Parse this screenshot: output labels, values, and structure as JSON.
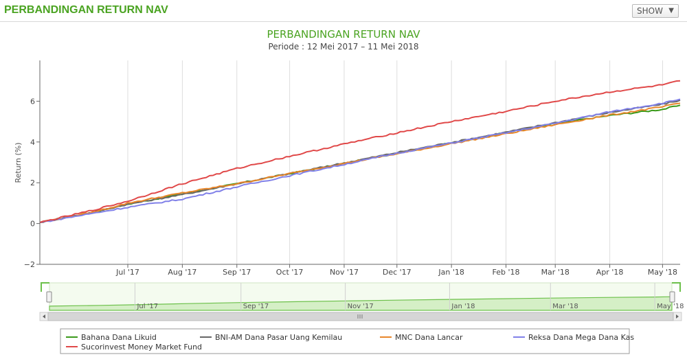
{
  "header": {
    "title": "PERBANDINGAN RETURN NAV",
    "show_label": "SHOW",
    "show_caret": "▼"
  },
  "chart_data": {
    "type": "line",
    "title": "PERBANDINGAN RETURN NAV",
    "subtitle": "Periode : 12 Mei 2017 – 11 Mei 2018",
    "ylabel": "Return (%)",
    "xlabel": "",
    "ylim": [
      -2,
      8
    ],
    "yticks": [
      -2,
      0,
      2,
      4,
      6
    ],
    "x_range_days": [
      0,
      364
    ],
    "xticks": [
      {
        "label": "Jul '17",
        "day": 50
      },
      {
        "label": "Aug '17",
        "day": 81
      },
      {
        "label": "Sep '17",
        "day": 112
      },
      {
        "label": "Oct '17",
        "day": 142
      },
      {
        "label": "Nov '17",
        "day": 173
      },
      {
        "label": "Dec '17",
        "day": 203
      },
      {
        "label": "Jan '18",
        "day": 234
      },
      {
        "label": "Feb '18",
        "day": 265
      },
      {
        "label": "Mar '18",
        "day": 293
      },
      {
        "label": "Apr '18",
        "day": 324
      },
      {
        "label": "May '18",
        "day": 354
      }
    ],
    "navigator_ticks": [
      {
        "label": "Jul '17",
        "day": 50
      },
      {
        "label": "Sep '17",
        "day": 112
      },
      {
        "label": "Nov '17",
        "day": 173
      },
      {
        "label": "Jan '18",
        "day": 234
      },
      {
        "label": "Mar '18",
        "day": 293
      },
      {
        "label": "May '18",
        "day": 354
      }
    ],
    "series": [
      {
        "name": "Bahana Dana Likuid",
        "color": "#3a9a1a",
        "points": [
          [
            0,
            0.05
          ],
          [
            30,
            0.55
          ],
          [
            50,
            0.95
          ],
          [
            81,
            1.45
          ],
          [
            112,
            1.95
          ],
          [
            142,
            2.45
          ],
          [
            173,
            2.95
          ],
          [
            203,
            3.45
          ],
          [
            234,
            3.95
          ],
          [
            265,
            4.45
          ],
          [
            293,
            4.9
          ],
          [
            324,
            5.3
          ],
          [
            354,
            5.6
          ],
          [
            364,
            5.8
          ]
        ]
      },
      {
        "name": "BNI-AM Dana Pasar Uang Kemilau",
        "color": "#666666",
        "points": [
          [
            0,
            0.05
          ],
          [
            30,
            0.55
          ],
          [
            50,
            0.95
          ],
          [
            81,
            1.42
          ],
          [
            112,
            1.95
          ],
          [
            142,
            2.45
          ],
          [
            173,
            2.97
          ],
          [
            203,
            3.48
          ],
          [
            234,
            3.98
          ],
          [
            265,
            4.48
          ],
          [
            293,
            4.95
          ],
          [
            324,
            5.45
          ],
          [
            354,
            5.85
          ],
          [
            364,
            6.05
          ]
        ]
      },
      {
        "name": "MNC Dana Lancar",
        "color": "#e8862a",
        "points": [
          [
            0,
            0.05
          ],
          [
            30,
            0.55
          ],
          [
            50,
            1.0
          ],
          [
            81,
            1.5
          ],
          [
            112,
            1.95
          ],
          [
            142,
            2.45
          ],
          [
            173,
            2.95
          ],
          [
            203,
            3.42
          ],
          [
            234,
            3.92
          ],
          [
            265,
            4.4
          ],
          [
            293,
            4.85
          ],
          [
            324,
            5.32
          ],
          [
            354,
            5.72
          ],
          [
            364,
            5.9
          ]
        ]
      },
      {
        "name": "Reksa Dana Mega Dana Kas",
        "color": "#8080e8",
        "points": [
          [
            0,
            0.05
          ],
          [
            30,
            0.5
          ],
          [
            50,
            0.8
          ],
          [
            81,
            1.2
          ],
          [
            112,
            1.8
          ],
          [
            142,
            2.35
          ],
          [
            173,
            2.9
          ],
          [
            203,
            3.45
          ],
          [
            234,
            3.95
          ],
          [
            265,
            4.45
          ],
          [
            293,
            4.92
          ],
          [
            324,
            5.48
          ],
          [
            354,
            5.9
          ],
          [
            364,
            6.1
          ]
        ]
      },
      {
        "name": "Sucorinvest Money Market Fund",
        "color": "#e04848",
        "points": [
          [
            0,
            0.05
          ],
          [
            30,
            0.65
          ],
          [
            50,
            1.1
          ],
          [
            81,
            1.95
          ],
          [
            112,
            2.7
          ],
          [
            142,
            3.3
          ],
          [
            173,
            3.9
          ],
          [
            203,
            4.45
          ],
          [
            234,
            5.0
          ],
          [
            265,
            5.5
          ],
          [
            293,
            6.0
          ],
          [
            324,
            6.45
          ],
          [
            354,
            6.8
          ],
          [
            364,
            7.0
          ]
        ]
      }
    ]
  }
}
